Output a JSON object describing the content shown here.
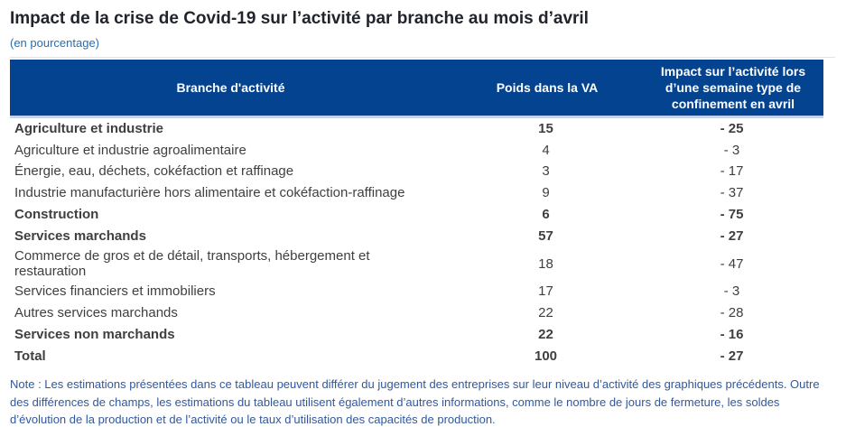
{
  "title": "Impact de la crise de Covid-19 sur l’activité par branche au mois d’avril",
  "subtitle": "(en pourcentage)",
  "colors": {
    "header_blue": "#04438f",
    "band_lavender": "#d6d7e9",
    "header_separator": "#c6d3ed",
    "subtitle_blue": "#2a6db0",
    "note_blue": "#30589f",
    "title_color": "#21242c"
  },
  "table": {
    "columns": [
      "Branche d'activité",
      "Poids dans la VA",
      "Impact sur l’activité lors d’une semaine type de confinement en avril"
    ],
    "rows": [
      {
        "label": "Agriculture et industrie",
        "poids": "15",
        "impact": "- 25",
        "style": "group"
      },
      {
        "label": "Agriculture et industrie agroalimentaire",
        "poids": "4",
        "impact": "- 3",
        "style": "detail"
      },
      {
        "label": "Énergie, eau, déchets, cokéfaction et raffinage",
        "poids": "3",
        "impact": "- 17",
        "style": "detail"
      },
      {
        "label": "Industrie manufacturière hors alimentaire et cokéfaction-raffinage",
        "poids": "9",
        "impact": "- 37",
        "style": "detail"
      },
      {
        "label": "Construction",
        "poids": "6",
        "impact": "- 75",
        "style": "group"
      },
      {
        "label": "Services marchands",
        "poids": "57",
        "impact": "- 27",
        "style": "group"
      },
      {
        "label": "Commerce de gros et de détail, transports, hébergement et restauration",
        "poids": "18",
        "impact": "- 47",
        "style": "detail"
      },
      {
        "label": "Services financiers et immobiliers",
        "poids": "17",
        "impact": "- 3",
        "style": "detail"
      },
      {
        "label": "Autres services marchands",
        "poids": "22",
        "impact": "- 28",
        "style": "detail"
      },
      {
        "label": "Services non marchands",
        "poids": "22",
        "impact": "- 16",
        "style": "group"
      },
      {
        "label": "Total",
        "poids": "100",
        "impact": "- 27",
        "style": "total"
      }
    ]
  },
  "note": "Note : Les estimations présentées dans ce tableau peuvent différer du jugement des entreprises sur leur niveau d’activité des graphiques précédents. Outre des différences de champs, les estimations du tableau utilisent également d’autres informations, comme le nombre de jours de fermeture, les soldes d’évolution de la production et de l’activité ou le taux d’utilisation des capacités de production.",
  "chart_data": {
    "type": "table",
    "title": "Impact de la crise de Covid-19 sur l’activité par branche au mois d’avril",
    "unit": "en pourcentage",
    "columns": [
      "Branche d'activité",
      "Poids dans la VA",
      "Impact sur l’activité lors d’une semaine type de confinement en avril"
    ],
    "rows": [
      [
        "Agriculture et industrie",
        15,
        -25
      ],
      [
        "Agriculture et industrie agroalimentaire",
        4,
        -3
      ],
      [
        "Énergie, eau, déchets, cokéfaction et raffinage",
        3,
        -17
      ],
      [
        "Industrie manufacturière hors alimentaire et cokéfaction-raffinage",
        9,
        -37
      ],
      [
        "Construction",
        6,
        -75
      ],
      [
        "Services marchands",
        57,
        -27
      ],
      [
        "Commerce de gros et de détail, transports, hébergement et restauration",
        18,
        -47
      ],
      [
        "Services financiers et immobiliers",
        17,
        -3
      ],
      [
        "Autres services marchands",
        22,
        -28
      ],
      [
        "Services non marchands",
        22,
        -16
      ],
      [
        "Total",
        100,
        -27
      ]
    ],
    "group_rows": [
      "Agriculture et industrie",
      "Construction",
      "Services marchands",
      "Services non marchands"
    ],
    "total_row": "Total"
  }
}
